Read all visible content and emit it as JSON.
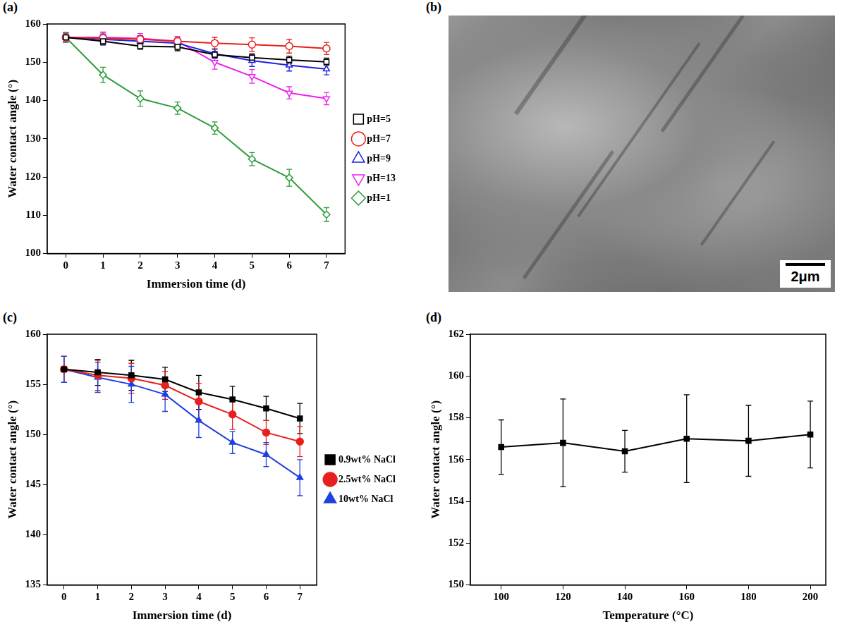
{
  "chart_data": [
    {
      "panel": "(a)",
      "type": "line",
      "xlabel": "Immersion time (d)",
      "ylabel": "Water contact angle (°)",
      "x": [
        0,
        1,
        2,
        3,
        4,
        5,
        6,
        7
      ],
      "xlim": [
        -0.5,
        7.5
      ],
      "xticks": [
        0,
        1,
        2,
        3,
        4,
        5,
        6,
        7
      ],
      "ylim": [
        100,
        160
      ],
      "yticks": [
        100,
        110,
        120,
        130,
        140,
        150,
        160
      ],
      "grid": false,
      "legend": "right",
      "series": [
        {
          "name": "pH=5",
          "color": "#000000",
          "marker": "square-open",
          "line_style": "solid",
          "values": [
            156.5,
            155.5,
            154.2,
            154.0,
            152.0,
            151.2,
            150.6,
            150.1
          ],
          "errors": [
            1.2,
            1.0,
            0.8,
            1.0,
            0.8,
            1.0,
            1.0,
            1.0
          ]
        },
        {
          "name": "pH=7",
          "color": "#e8201d",
          "marker": "circle-open",
          "line_style": "solid",
          "values": [
            156.5,
            156.3,
            156.0,
            155.5,
            155.0,
            154.6,
            154.2,
            153.6
          ],
          "errors": [
            1.2,
            1.5,
            1.0,
            1.2,
            1.5,
            1.8,
            1.8,
            1.6
          ]
        },
        {
          "name": "pH=9",
          "color": "#2020e0",
          "marker": "triangle-open",
          "line_style": "solid",
          "values": [
            156.5,
            156.0,
            155.5,
            155.0,
            152.2,
            150.4,
            149.2,
            148.2
          ],
          "errors": [
            1.2,
            1.4,
            1.4,
            1.3,
            1.2,
            1.5,
            1.5,
            1.5
          ]
        },
        {
          "name": "pH=13",
          "color": "#ee22ee",
          "marker": "triangle-down-open",
          "line_style": "solid",
          "values": [
            156.5,
            156.5,
            156.2,
            155.5,
            150.0,
            146.3,
            142.0,
            140.5
          ],
          "errors": [
            1.2,
            1.4,
            1.3,
            1.2,
            1.8,
            1.8,
            1.6,
            1.6
          ]
        },
        {
          "name": "pH=1",
          "color": "#2e9e3a",
          "marker": "diamond-open",
          "line_style": "solid",
          "values": [
            156.5,
            146.7,
            140.5,
            138.0,
            132.8,
            124.7,
            119.8,
            110.2
          ],
          "errors": [
            1.2,
            2.0,
            2.0,
            1.6,
            1.6,
            1.7,
            2.2,
            1.8
          ]
        }
      ]
    },
    {
      "panel": "(c)",
      "type": "line",
      "xlabel": "Immersion time (d)",
      "ylabel": "Water contact angle (°)",
      "x": [
        0,
        1,
        2,
        3,
        4,
        5,
        6,
        7
      ],
      "xlim": [
        -0.5,
        7.5
      ],
      "xticks": [
        0,
        1,
        2,
        3,
        4,
        5,
        6,
        7
      ],
      "ylim": [
        135,
        160
      ],
      "yticks": [
        135,
        140,
        145,
        150,
        155,
        160
      ],
      "grid": false,
      "legend": "right",
      "series": [
        {
          "name": "0.9wt% NaCl",
          "color": "#000000",
          "marker": "square",
          "line_style": "solid",
          "values": [
            156.5,
            156.2,
            155.9,
            155.5,
            154.2,
            153.5,
            152.6,
            151.6
          ],
          "errors": [
            1.3,
            1.3,
            1.5,
            1.2,
            1.7,
            1.3,
            1.2,
            1.5
          ]
        },
        {
          "name": "2.5wt% NaCl",
          "color": "#e8201d",
          "marker": "circle",
          "line_style": "solid",
          "values": [
            156.5,
            155.9,
            155.6,
            154.9,
            153.3,
            152.0,
            150.2,
            149.3
          ],
          "errors": [
            1.3,
            1.5,
            1.5,
            1.4,
            1.8,
            1.5,
            1.2,
            1.5
          ]
        },
        {
          "name": "10wt% NaCl",
          "color": "#1f3fe0",
          "marker": "triangle",
          "line_style": "solid",
          "values": [
            156.5,
            155.7,
            155.0,
            154.0,
            151.4,
            149.2,
            148.0,
            145.7
          ],
          "errors": [
            1.3,
            1.5,
            1.8,
            1.7,
            1.7,
            1.1,
            1.2,
            1.8
          ]
        }
      ]
    },
    {
      "panel": "(d)",
      "type": "line",
      "xlabel": "Temperature (°C)",
      "ylabel": "Water contact angle (°)",
      "x": [
        100,
        120,
        140,
        160,
        180,
        200
      ],
      "xlim": [
        90,
        205
      ],
      "xticks": [
        100,
        120,
        140,
        160,
        180,
        200
      ],
      "ylim": [
        150,
        162
      ],
      "yticks": [
        150,
        152,
        154,
        156,
        158,
        160,
        162
      ],
      "grid": false,
      "series": [
        {
          "name": "Water contact angle",
          "color": "#000000",
          "marker": "square",
          "line_style": "solid",
          "values": [
            156.6,
            156.8,
            156.4,
            157.0,
            156.9,
            157.2
          ],
          "errors": [
            1.3,
            2.1,
            1.0,
            2.1,
            1.7,
            1.6
          ]
        }
      ]
    }
  ],
  "image": {
    "panel": "(b)",
    "scale_bar": "2μm"
  }
}
